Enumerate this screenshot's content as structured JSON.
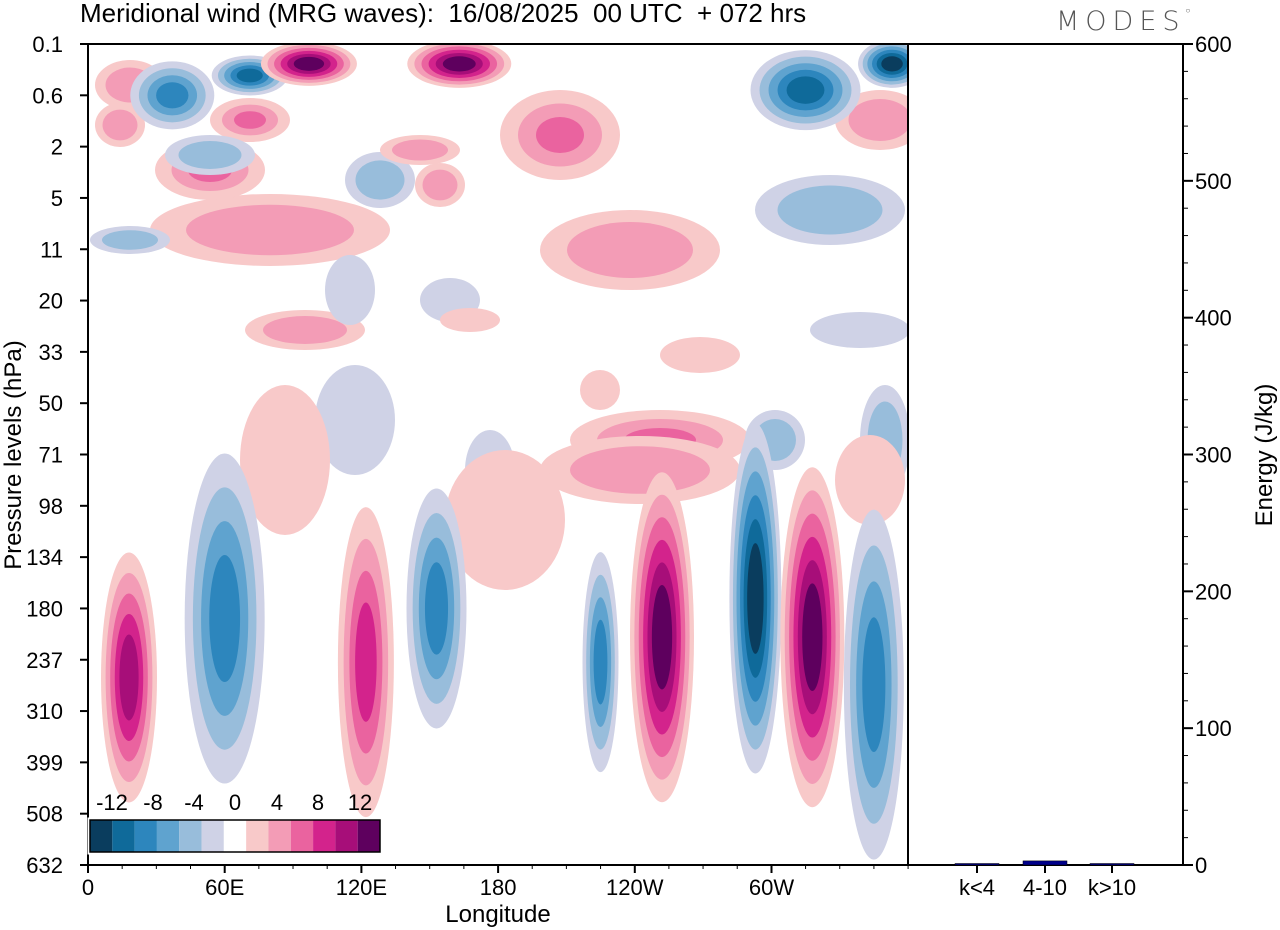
{
  "title": "Meridional wind (MRG waves):  16/08/2025  00 UTC  + 072 hrs",
  "brand": "MODES",
  "chart_data": [
    {
      "type": "heatmap",
      "title": "Meridional wind (MRG waves)",
      "xlabel": "Longitude",
      "ylabel": "Pressure levels (hPa)",
      "x_ticks": [
        "0",
        "60E",
        "120E",
        "180",
        "120W",
        "60W"
      ],
      "x_range": [
        0,
        360
      ],
      "y_ticks": [
        "0.1",
        "0.6",
        "2",
        "5",
        "11",
        "20",
        "33",
        "50",
        "71",
        "98",
        "134",
        "180",
        "237",
        "310",
        "399",
        "508",
        "632"
      ],
      "colorbar": {
        "labels": [
          "-12",
          "-8",
          "-4",
          "0",
          "4",
          "8",
          "12"
        ],
        "levels": [
          -14,
          -12,
          -10,
          -8,
          -6,
          -4,
          -2,
          2,
          4,
          6,
          8,
          10,
          12,
          14
        ],
        "colors": [
          "#0a3d5e",
          "#0f6a9a",
          "#2d86bd",
          "#5fa3cf",
          "#98bddb",
          "#cfd2e6",
          "#ffffff",
          "#f8c9c9",
          "#f39cb6",
          "#ea639f",
          "#d3238c",
          "#a70e79",
          "#5e005e"
        ]
      },
      "features": [
        {
          "lon": 37,
          "level": "0.6",
          "value": -10
        },
        {
          "lon": 71,
          "level": "0.3",
          "value": -12
        },
        {
          "lon": 97,
          "level": "0.2",
          "value": 14
        },
        {
          "lon": 163,
          "level": "0.2",
          "value": 14
        },
        {
          "lon": 315,
          "level": "0.5",
          "value": -12
        },
        {
          "lon": 353,
          "level": "0.2",
          "value": -14
        },
        {
          "lon": 18,
          "level": "260",
          "value": 10
        },
        {
          "lon": 60,
          "level": "190",
          "value": -10
        },
        {
          "lon": 122,
          "level": "240",
          "value": 8
        },
        {
          "lon": 153,
          "level": "180",
          "value": -10
        },
        {
          "lon": 225,
          "level": "240",
          "value": -10
        },
        {
          "lon": 252,
          "level": "210",
          "value": 14
        },
        {
          "lon": 293,
          "level": "170",
          "value": -14
        },
        {
          "lon": 318,
          "level": "210",
          "value": 14
        },
        {
          "lon": 345,
          "level": "270",
          "value": -10
        }
      ]
    },
    {
      "type": "bar",
      "ylabel": "Energy (J/kg)",
      "categories": [
        "k<4",
        "4-10",
        "k>10"
      ],
      "values": [
        0.5,
        3,
        0.5
      ],
      "ylim": [
        0,
        600
      ],
      "y_ticks": [
        "0",
        "100",
        "200",
        "300",
        "400",
        "500",
        "600"
      ],
      "bar_color": "#00008b"
    }
  ]
}
